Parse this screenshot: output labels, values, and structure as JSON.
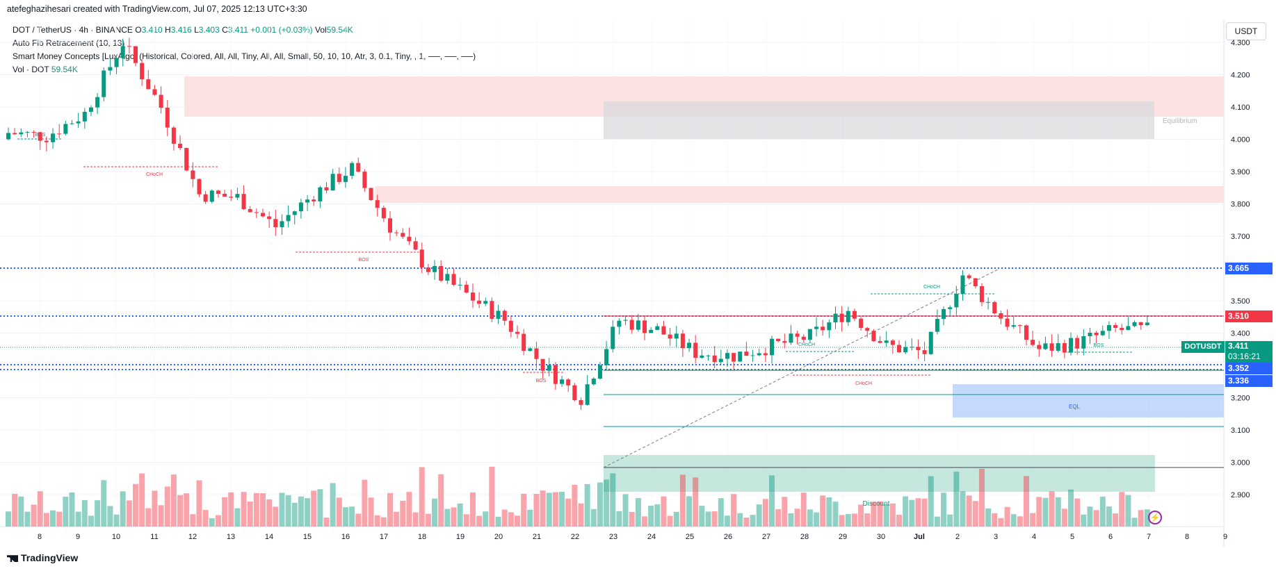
{
  "header": {
    "author_line": "atefeghazihesari created with TradingView.com, Jul 07, 2025 12:13 UTC+3:30"
  },
  "legend": {
    "symbol": "DOT / TetherUS · 4h · BINANCE",
    "open_label": "O",
    "open": "3.410",
    "high_label": "H",
    "high": "3.416",
    "low_label": "L",
    "low": "3.403",
    "close_label": "C",
    "close": "3.411",
    "change": "+0.001 (+0.03%)",
    "vol_label": "Vol",
    "vol": "59.54K",
    "indicator1": "Auto Fib Retracement (10, 13)",
    "indicator2": "Smart Money Concepts [LuxAlgo] (Historical, Colored, All, All, Tiny, All, All, Small, 50, 10, 10, Atr, 3, 0.1, Tiny, , 1, ──, ──, ──)",
    "vol_name": "Vol · DOT",
    "vol_value": "59.54K"
  },
  "currency_button": "USDT",
  "price_labels": {
    "level_3665": "3.665",
    "level_3510": "3.510",
    "symbol_tag": "DOTUSDT",
    "last_price": "3.411",
    "countdown": "03:16:21",
    "level_3352": "3.352",
    "level_3336": "3.336"
  },
  "footer_logo": "TradingView",
  "colors": {
    "up": "#089981",
    "down": "#f23645",
    "fib": "#2962ff",
    "premium": "#fcd4d6",
    "equilibrium": "#d9dadd",
    "discount": "#b2dfd2"
  },
  "chart_data": {
    "type": "candlestick",
    "symbol": "DOTUSDT",
    "interval": "4h",
    "ylim": [
      2.82,
      4.4
    ],
    "yticks": [
      2.9,
      3.0,
      3.1,
      3.2,
      3.3,
      3.4,
      3.5,
      3.6,
      3.7,
      3.8,
      3.9,
      4.0,
      4.1,
      4.2,
      4.3
    ],
    "xticks": [
      "8",
      "9",
      "10",
      "11",
      "12",
      "13",
      "14",
      "15",
      "16",
      "17",
      "18",
      "19",
      "20",
      "21",
      "22",
      "23",
      "24",
      "25",
      "26",
      "27",
      "28",
      "29",
      "30",
      "Jul",
      "2",
      "3",
      "4",
      "5",
      "6",
      "7",
      "8",
      "9"
    ],
    "close_points": [
      [
        "8",
        4.02
      ],
      [
        "9",
        4.01
      ],
      [
        "10",
        4.08
      ],
      [
        "11",
        4.3
      ],
      [
        "12",
        4.1
      ],
      [
        "13",
        3.83
      ],
      [
        "14",
        3.82
      ],
      [
        "15",
        3.73
      ],
      [
        "16",
        3.83
      ],
      [
        "17",
        3.91
      ],
      [
        "18",
        3.73
      ],
      [
        "19",
        3.6
      ],
      [
        "20",
        3.52
      ],
      [
        "21",
        3.44
      ],
      [
        "22",
        3.3
      ],
      [
        "23",
        3.2
      ],
      [
        "24",
        3.44
      ],
      [
        "25",
        3.41
      ],
      [
        "26",
        3.34
      ],
      [
        "27",
        3.33
      ],
      [
        "28",
        3.36
      ],
      [
        "29",
        3.39
      ],
      [
        "30",
        3.47
      ],
      [
        "Jul",
        3.36
      ],
      [
        "2",
        3.34
      ],
      [
        "3",
        3.58
      ],
      [
        "4",
        3.45
      ],
      [
        "5",
        3.35
      ],
      [
        "6",
        3.37
      ],
      [
        "7",
        3.41
      ]
    ],
    "volume_scale_note": "",
    "zones": [
      {
        "name": "Premium",
        "from": 4.22,
        "to": 4.34
      },
      {
        "name": "Equilibrium",
        "from": 4.15,
        "to": 4.26
      },
      {
        "name": "Discount",
        "from": 3.01,
        "to": 3.13
      }
    ],
    "zone_labels": {
      "equilibrium": "Equilibrium",
      "discount": "Discount"
    },
    "structure_labels": [
      "BOS",
      "CHoCH",
      "BOS",
      "BOS",
      "CHoCH",
      "CHoCH",
      "CHoCH",
      "BOS",
      "EQL"
    ],
    "horizontal_levels": [
      3.665,
      3.51,
      3.352,
      3.336
    ]
  }
}
